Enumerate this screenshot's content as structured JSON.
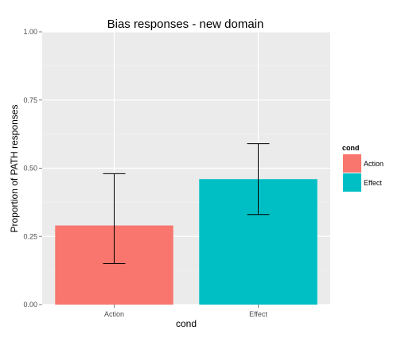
{
  "chart_data": {
    "type": "bar",
    "title": "Bias responses - new domain",
    "xlabel": "cond",
    "ylabel": "Proportion of PATH responses",
    "categories": [
      "Action",
      "Effect"
    ],
    "values": [
      0.29,
      0.46
    ],
    "error_low": [
      0.15,
      0.33
    ],
    "error_high": [
      0.48,
      0.59
    ],
    "ylim": [
      0,
      1
    ],
    "yticks": [
      0,
      0.25,
      0.5,
      0.75,
      1
    ],
    "ytick_labels": [
      "0.00",
      "0.25",
      "0.50",
      "0.75",
      "1.00"
    ],
    "grid": true,
    "legend": {
      "title": "cond",
      "placement": "right",
      "entries": [
        "Action",
        "Effect"
      ]
    },
    "colors": [
      "#F8766D",
      "#00BFC4"
    ],
    "panel_background": "#EBEBEB"
  }
}
